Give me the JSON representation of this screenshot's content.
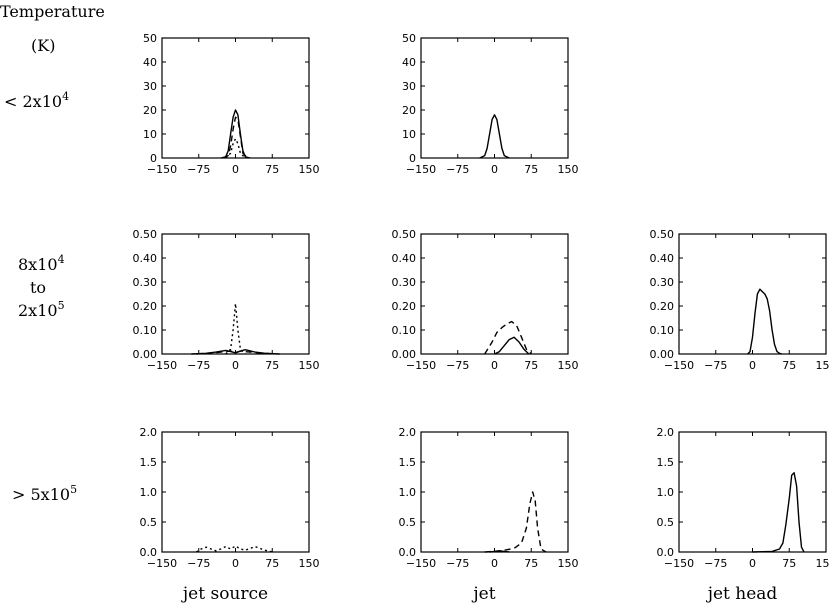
{
  "row_header": {
    "line1": "Temperature",
    "line2": "(K)"
  },
  "row_labels": [
    {
      "parts": [
        {
          "t": "< 2x10"
        },
        {
          "sup": "4"
        }
      ]
    },
    {
      "parts": [
        {
          "t": "8x10"
        },
        {
          "sup": "4"
        },
        {
          "br": true
        },
        {
          "t": "to"
        },
        {
          "br": true
        },
        {
          "t": "2x10"
        },
        {
          "sup": "5"
        }
      ]
    },
    {
      "parts": [
        {
          "t": "> 5x10"
        },
        {
          "sup": "5"
        }
      ]
    }
  ],
  "column_labels": [
    "jet source",
    "jet",
    "jet head"
  ],
  "chart_data": [
    {
      "type": "line",
      "row": 0,
      "col": 0,
      "xlim": [
        -150,
        150
      ],
      "ylim": [
        0,
        50
      ],
      "xticks": [
        "-150",
        "-75",
        "0",
        "75",
        "150"
      ],
      "yticks": [
        "0",
        "10",
        "20",
        "30",
        "40",
        "50"
      ],
      "series": [
        {
          "style": "solid",
          "x": [
            -30,
            -20,
            -15,
            -10,
            -5,
            0,
            5,
            10,
            15,
            20,
            30
          ],
          "y": [
            0,
            0.5,
            3,
            10,
            17,
            20,
            18,
            10,
            3,
            0.5,
            0
          ]
        },
        {
          "style": "dashed",
          "x": [
            -25,
            -15,
            -10,
            -5,
            0,
            5,
            10,
            15,
            25
          ],
          "y": [
            0,
            1,
            5,
            12,
            17,
            16,
            9,
            2,
            0
          ]
        },
        {
          "style": "dotted",
          "x": [
            -20,
            -10,
            -5,
            0,
            5,
            10,
            20
          ],
          "y": [
            0,
            2,
            6,
            8,
            6,
            2,
            0
          ]
        }
      ]
    },
    {
      "type": "line",
      "row": 0,
      "col": 1,
      "xlim": [
        -150,
        150
      ],
      "ylim": [
        0,
        50
      ],
      "xticks": [
        "-150",
        "-75",
        "0",
        "75",
        "150"
      ],
      "yticks": [
        "0",
        "10",
        "20",
        "30",
        "40",
        "50"
      ],
      "series": [
        {
          "style": "solid",
          "x": [
            -30,
            -20,
            -15,
            -10,
            -5,
            0,
            5,
            10,
            15,
            20,
            30
          ],
          "y": [
            0,
            1,
            4,
            10,
            16,
            18,
            16,
            10,
            4,
            1,
            0
          ]
        }
      ]
    },
    {
      "type": "line",
      "row": 1,
      "col": 0,
      "xlim": [
        -150,
        150
      ],
      "ylim": [
        0,
        0.5
      ],
      "xticks": [
        "-150",
        "-75",
        "0",
        "75",
        "150"
      ],
      "yticks": [
        "0.00",
        "0.10",
        "0.20",
        "0.30",
        "0.40",
        "0.50"
      ],
      "series": [
        {
          "style": "dotted",
          "x": [
            -20,
            -10,
            -5,
            0,
            5,
            10,
            20
          ],
          "y": [
            0,
            0.02,
            0.1,
            0.21,
            0.1,
            0.02,
            0
          ]
        },
        {
          "style": "solid",
          "x": [
            -90,
            -60,
            -40,
            -20,
            -10,
            0,
            10,
            20,
            40,
            60,
            90
          ],
          "y": [
            0,
            0.003,
            0.008,
            0.015,
            0.01,
            0.005,
            0.012,
            0.018,
            0.008,
            0.003,
            0
          ]
        },
        {
          "style": "dashed",
          "x": [
            -80,
            -50,
            -30,
            -10,
            0,
            10,
            30,
            50,
            80
          ],
          "y": [
            0,
            0.004,
            0.008,
            0.012,
            0.006,
            0.012,
            0.008,
            0.004,
            0
          ]
        }
      ]
    },
    {
      "type": "line",
      "row": 1,
      "col": 1,
      "xlim": [
        -150,
        150
      ],
      "ylim": [
        0,
        0.5
      ],
      "xticks": [
        "-150",
        "-75",
        "0",
        "75",
        "150"
      ],
      "yticks": [
        "0.00",
        "0.10",
        "0.20",
        "0.30",
        "0.40",
        "0.50"
      ],
      "series": [
        {
          "style": "dashed",
          "x": [
            -20,
            -5,
            5,
            15,
            25,
            35,
            45,
            55,
            65,
            75
          ],
          "y": [
            0,
            0.05,
            0.09,
            0.11,
            0.125,
            0.135,
            0.12,
            0.07,
            0.02,
            0
          ]
        },
        {
          "style": "solid",
          "x": [
            0,
            10,
            20,
            30,
            40,
            50,
            60,
            70
          ],
          "y": [
            0,
            0.01,
            0.035,
            0.06,
            0.07,
            0.05,
            0.02,
            0
          ]
        }
      ]
    },
    {
      "type": "line",
      "row": 1,
      "col": 2,
      "xlim": [
        -150,
        150
      ],
      "ylim": [
        0,
        0.5
      ],
      "xticks": [
        "-150",
        "-75",
        "0",
        "75",
        "150"
      ],
      "yticks": [
        "0.00",
        "0.10",
        "0.20",
        "0.30",
        "0.40",
        "0.50"
      ],
      "series": [
        {
          "style": "solid",
          "x": [
            -10,
            -5,
            0,
            5,
            10,
            15,
            20,
            25,
            30,
            35,
            40,
            45,
            50,
            55,
            60
          ],
          "y": [
            0,
            0.01,
            0.07,
            0.17,
            0.25,
            0.27,
            0.26,
            0.25,
            0.23,
            0.18,
            0.1,
            0.04,
            0.01,
            0.003,
            0
          ]
        }
      ]
    },
    {
      "type": "line",
      "row": 2,
      "col": 0,
      "xlim": [
        -150,
        150
      ],
      "ylim": [
        0,
        2.0
      ],
      "xticks": [
        "-150",
        "-75",
        "0",
        "75",
        "150"
      ],
      "yticks": [
        "0.0",
        "0.5",
        "1.0",
        "1.5",
        "2.0"
      ],
      "series": [
        {
          "style": "dotted",
          "x": [
            -80,
            -70,
            -60,
            -50,
            -40,
            -30,
            -20,
            -10,
            0,
            10,
            20,
            30,
            40,
            50,
            60,
            70,
            80
          ],
          "y": [
            0,
            0.05,
            0.08,
            0.05,
            0.02,
            0.05,
            0.09,
            0.05,
            0.1,
            0.05,
            0.03,
            0.06,
            0.09,
            0.06,
            0.03,
            0.01,
            0
          ]
        }
      ]
    },
    {
      "type": "line",
      "row": 2,
      "col": 1,
      "xlim": [
        -150,
        150
      ],
      "ylim": [
        0,
        2.0
      ],
      "xticks": [
        "-150",
        "-75",
        "0",
        "75",
        "150"
      ],
      "yticks": [
        "0.0",
        "0.5",
        "1.0",
        "1.5",
        "2.0"
      ],
      "series": [
        {
          "style": "dashed",
          "x": [
            -20,
            0,
            20,
            40,
            55,
            65,
            72,
            78,
            83,
            88,
            95,
            105
          ],
          "y": [
            0,
            0.01,
            0.03,
            0.06,
            0.15,
            0.4,
            0.8,
            1.0,
            0.85,
            0.4,
            0.05,
            0
          ]
        },
        {
          "style": "solid",
          "x": [
            -10,
            0,
            10,
            20,
            30
          ],
          "y": [
            0,
            0.01,
            0.02,
            0.01,
            0
          ]
        }
      ]
    },
    {
      "type": "line",
      "row": 2,
      "col": 2,
      "xlim": [
        -150,
        150
      ],
      "ylim": [
        0,
        2.0
      ],
      "xticks": [
        "-150",
        "-75",
        "0",
        "75",
        "150"
      ],
      "yticks": [
        "0.0",
        "0.5",
        "1.0",
        "1.5",
        "2.0"
      ],
      "series": [
        {
          "style": "solid",
          "x": [
            0,
            20,
            40,
            55,
            62,
            68,
            75,
            80,
            85,
            90,
            95,
            100,
            105
          ],
          "y": [
            0,
            0.005,
            0.01,
            0.05,
            0.15,
            0.45,
            0.9,
            1.28,
            1.32,
            1.1,
            0.5,
            0.08,
            0
          ]
        }
      ]
    }
  ]
}
